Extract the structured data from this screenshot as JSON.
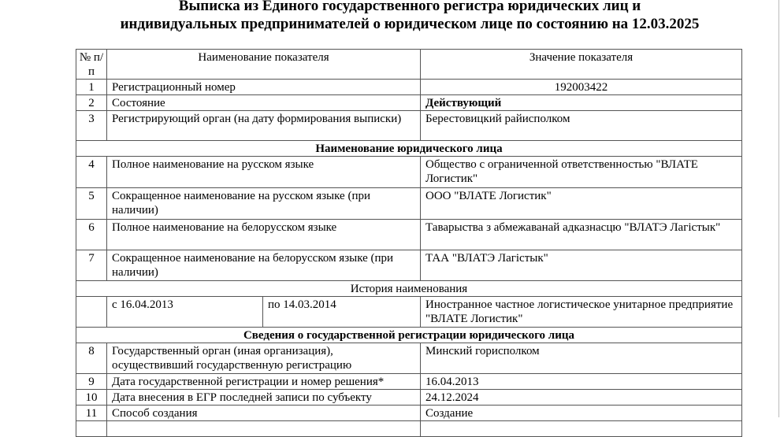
{
  "title": {
    "line1": "Выписка из Единого государственного регистра юридических лиц и",
    "line2": "индивидуальных предпринимателей о юридическом лице по состоянию на 12.03.2025"
  },
  "table": {
    "headers": {
      "num": "№ п/п",
      "name": "Наименование показателя",
      "value": "Значение показателя"
    },
    "rows_a": [
      {
        "num": "1",
        "name": "Регистрационный номер",
        "value": "192003422"
      },
      {
        "num": "2",
        "name": "Состояние",
        "value": "Действующий"
      },
      {
        "num": "3",
        "name": "Регистрирующий орган (на дату формирования выписки)",
        "value": "Берестовицкий райисполком"
      }
    ],
    "section1": "Наименование юридического лица",
    "rows_b": [
      {
        "num": "4",
        "name": "Полное наименование на русском языке",
        "value": "Общество с ограниченной ответственностью \"ВЛАТЕ Логистик\""
      },
      {
        "num": "5",
        "name": "Сокращенное наименование на русском языке (при наличии)",
        "value": "ООО \"ВЛАТЕ Логистик\""
      },
      {
        "num": "6",
        "name": "Полное наименование на белорусском языке",
        "value": "Таварыства з абмежаванай адказнасцю \"ВЛАТЭ Лагістык\""
      },
      {
        "num": "7",
        "name": "Сокращенное наименование на белорусском языке (при наличии)",
        "value": "ТАА \"ВЛАТЭ Лагістык\""
      }
    ],
    "history_title": "История наименования",
    "history": [
      {
        "from": "с 16.04.2013",
        "to": "по 14.03.2014",
        "value": "Иностранное частное логистическое унитарное предприятие \"ВЛАТЕ Логистик\""
      }
    ],
    "section2": "Сведения о государственной регистрации юридического лица",
    "rows_c": [
      {
        "num": "8",
        "name": "Государственный орган (иная организация), осуществивший государственную регистрацию",
        "value": "Минский горисполком"
      },
      {
        "num": "9",
        "name": "Дата государственной регистрации и номер решения*",
        "value": "16.04.2013"
      },
      {
        "num": "10",
        "name": "Дата внесения в ЕГР последней записи по субъекту",
        "value": "24.12.2024"
      },
      {
        "num": "11",
        "name": "Способ создания",
        "value": "Создание"
      }
    ]
  }
}
